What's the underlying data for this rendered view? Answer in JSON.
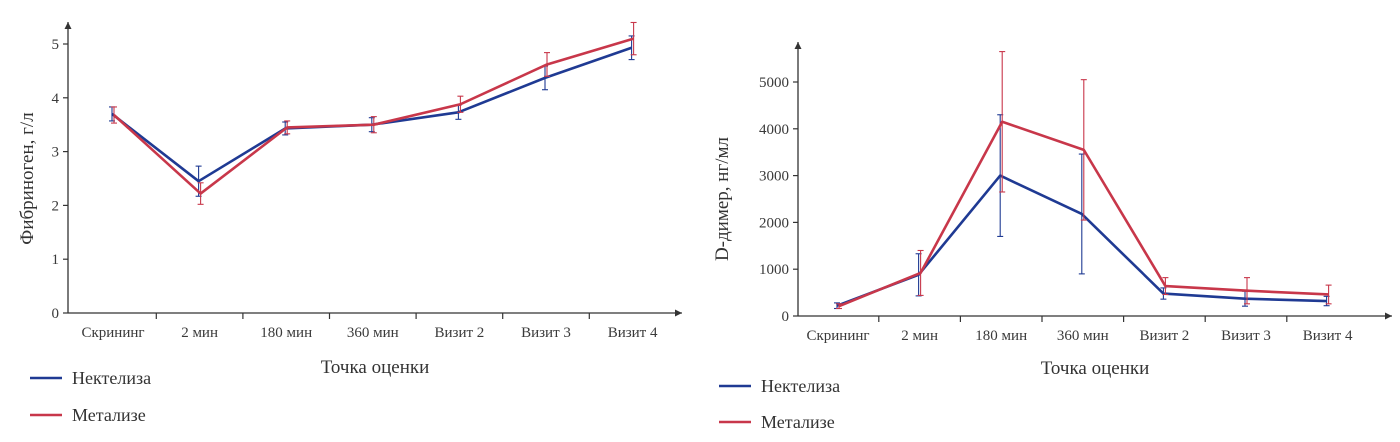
{
  "colors": {
    "nektelisa": "#1f3a93",
    "metalise": "#c8374a",
    "axis": "#333333"
  },
  "chart_data": [
    {
      "type": "line",
      "categories": [
        "Скрининг",
        "2 мин",
        "180 мин",
        "360 мин",
        "Визит 2",
        "Визит 3",
        "Визит 4"
      ],
      "xlabel": "Точка оценки",
      "ylabel": "Фибриноген, г/л",
      "ylim": [
        0,
        5
      ],
      "yticks": [
        "0",
        "1",
        "2",
        "3",
        "4",
        "5"
      ],
      "legend": "bottom-left",
      "series": [
        {
          "name": "Нектелиза",
          "color": "#1f3a93",
          "values": [
            3.7,
            2.45,
            3.43,
            3.5,
            3.73,
            4.37,
            4.93
          ],
          "err": [
            0.13,
            0.28,
            0.12,
            0.13,
            0.13,
            0.22,
            0.22
          ]
        },
        {
          "name": "Метализе",
          "color": "#c8374a",
          "values": [
            3.68,
            2.22,
            3.45,
            3.5,
            3.88,
            4.62,
            5.1
          ],
          "err": [
            0.15,
            0.2,
            0.12,
            0.15,
            0.15,
            0.22,
            0.3
          ]
        }
      ]
    },
    {
      "type": "line",
      "categories": [
        "Скрининг",
        "2 мин",
        "180 мин",
        "360 мин",
        "Визит 2",
        "Визит 3",
        "Визит 4"
      ],
      "xlabel": "Точка оценки",
      "ylabel": "D-димер, нг/мл",
      "ylim": [
        0,
        5000
      ],
      "yticks": [
        "0",
        "1000",
        "2000",
        "3000",
        "4000",
        "5000"
      ],
      "legend": "bottom-left",
      "series": [
        {
          "name": "Нектелиза",
          "color": "#1f3a93",
          "values": [
            220,
            880,
            3000,
            2180,
            480,
            370,
            320
          ],
          "err": [
            60,
            450,
            1300,
            1280,
            120,
            160,
            100
          ]
        },
        {
          "name": "Метализе",
          "color": "#c8374a",
          "values": [
            210,
            920,
            4150,
            3550,
            640,
            540,
            460
          ],
          "err": [
            50,
            480,
            1500,
            1500,
            180,
            280,
            200
          ]
        }
      ]
    }
  ]
}
